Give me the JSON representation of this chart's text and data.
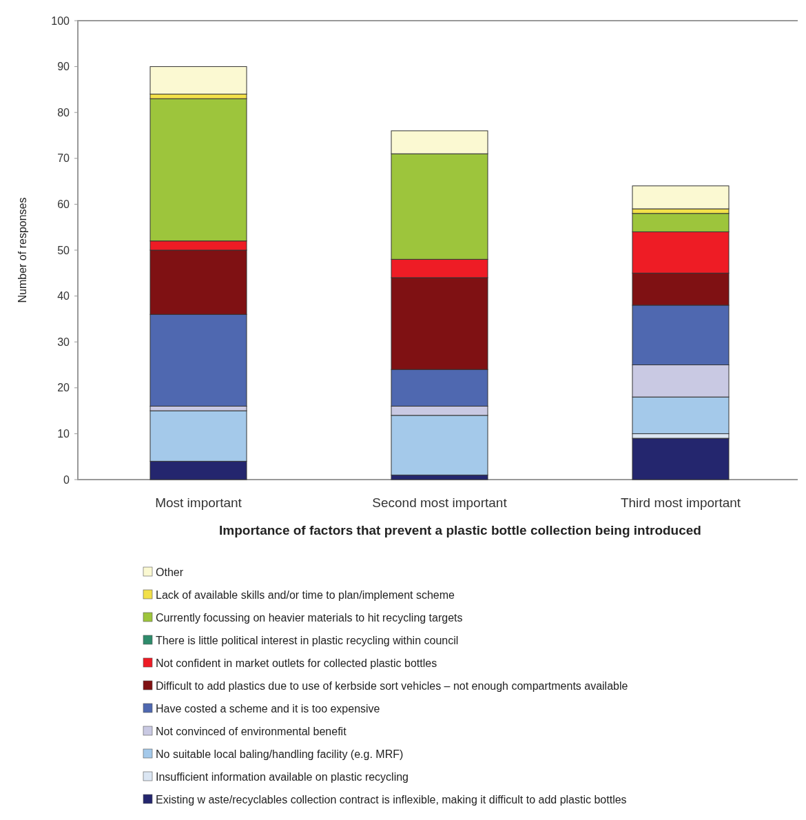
{
  "chart_data": {
    "type": "bar",
    "stacked": true,
    "xlabel": "Importance of factors that prevent a plastic bottle collection being introduced",
    "ylabel": "Number of responses",
    "categories": [
      "Most important",
      "Second most important",
      "Third most important"
    ],
    "ylim": [
      0,
      100
    ],
    "yticks": [
      0,
      10,
      20,
      30,
      40,
      50,
      60,
      70,
      80,
      90,
      100
    ],
    "grid": false,
    "legend": "bottom",
    "series": [
      {
        "name": "Existing w aste/recyclables collection contract is inflexible, making it difficult to add plastic bottles",
        "color": "#24266e",
        "values": [
          4,
          1,
          9
        ]
      },
      {
        "name": "Insufficient information available on plastic recycling",
        "color": "#dbe6f3",
        "values": [
          0,
          0,
          1
        ]
      },
      {
        "name": "No suitable local baling/handling facility (e.g. MRF)",
        "color": "#a4c9ea",
        "values": [
          11,
          13,
          8
        ]
      },
      {
        "name": "Not convinced of environmental benefit",
        "color": "#c9c9e3",
        "values": [
          1,
          2,
          7
        ]
      },
      {
        "name": "Have costed a scheme and it is too expensive",
        "color": "#4f68b0",
        "values": [
          20,
          8,
          13
        ]
      },
      {
        "name": "Difficult to add plastics due to use of kerbside sort vehicles – not enough compartments available",
        "color": "#7f1113",
        "values": [
          14,
          20,
          7
        ]
      },
      {
        "name": "Not confident in market outlets for collected plastic bottles",
        "color": "#ee1c25",
        "values": [
          2,
          4,
          9
        ]
      },
      {
        "name": "There is little political interest in plastic recycling within council",
        "color": "#2e8b6b",
        "values": [
          0,
          0,
          0
        ]
      },
      {
        "name": "Currently focussing on heavier materials to hit recycling targets",
        "color": "#9dc53c",
        "values": [
          31,
          23,
          4
        ]
      },
      {
        "name": "Lack  of available skills and/or time to plan/implement scheme",
        "color": "#f2e04a",
        "values": [
          1,
          0,
          1
        ]
      },
      {
        "name": "Other",
        "color": "#fbf9d2",
        "values": [
          6,
          5,
          5
        ]
      }
    ]
  }
}
